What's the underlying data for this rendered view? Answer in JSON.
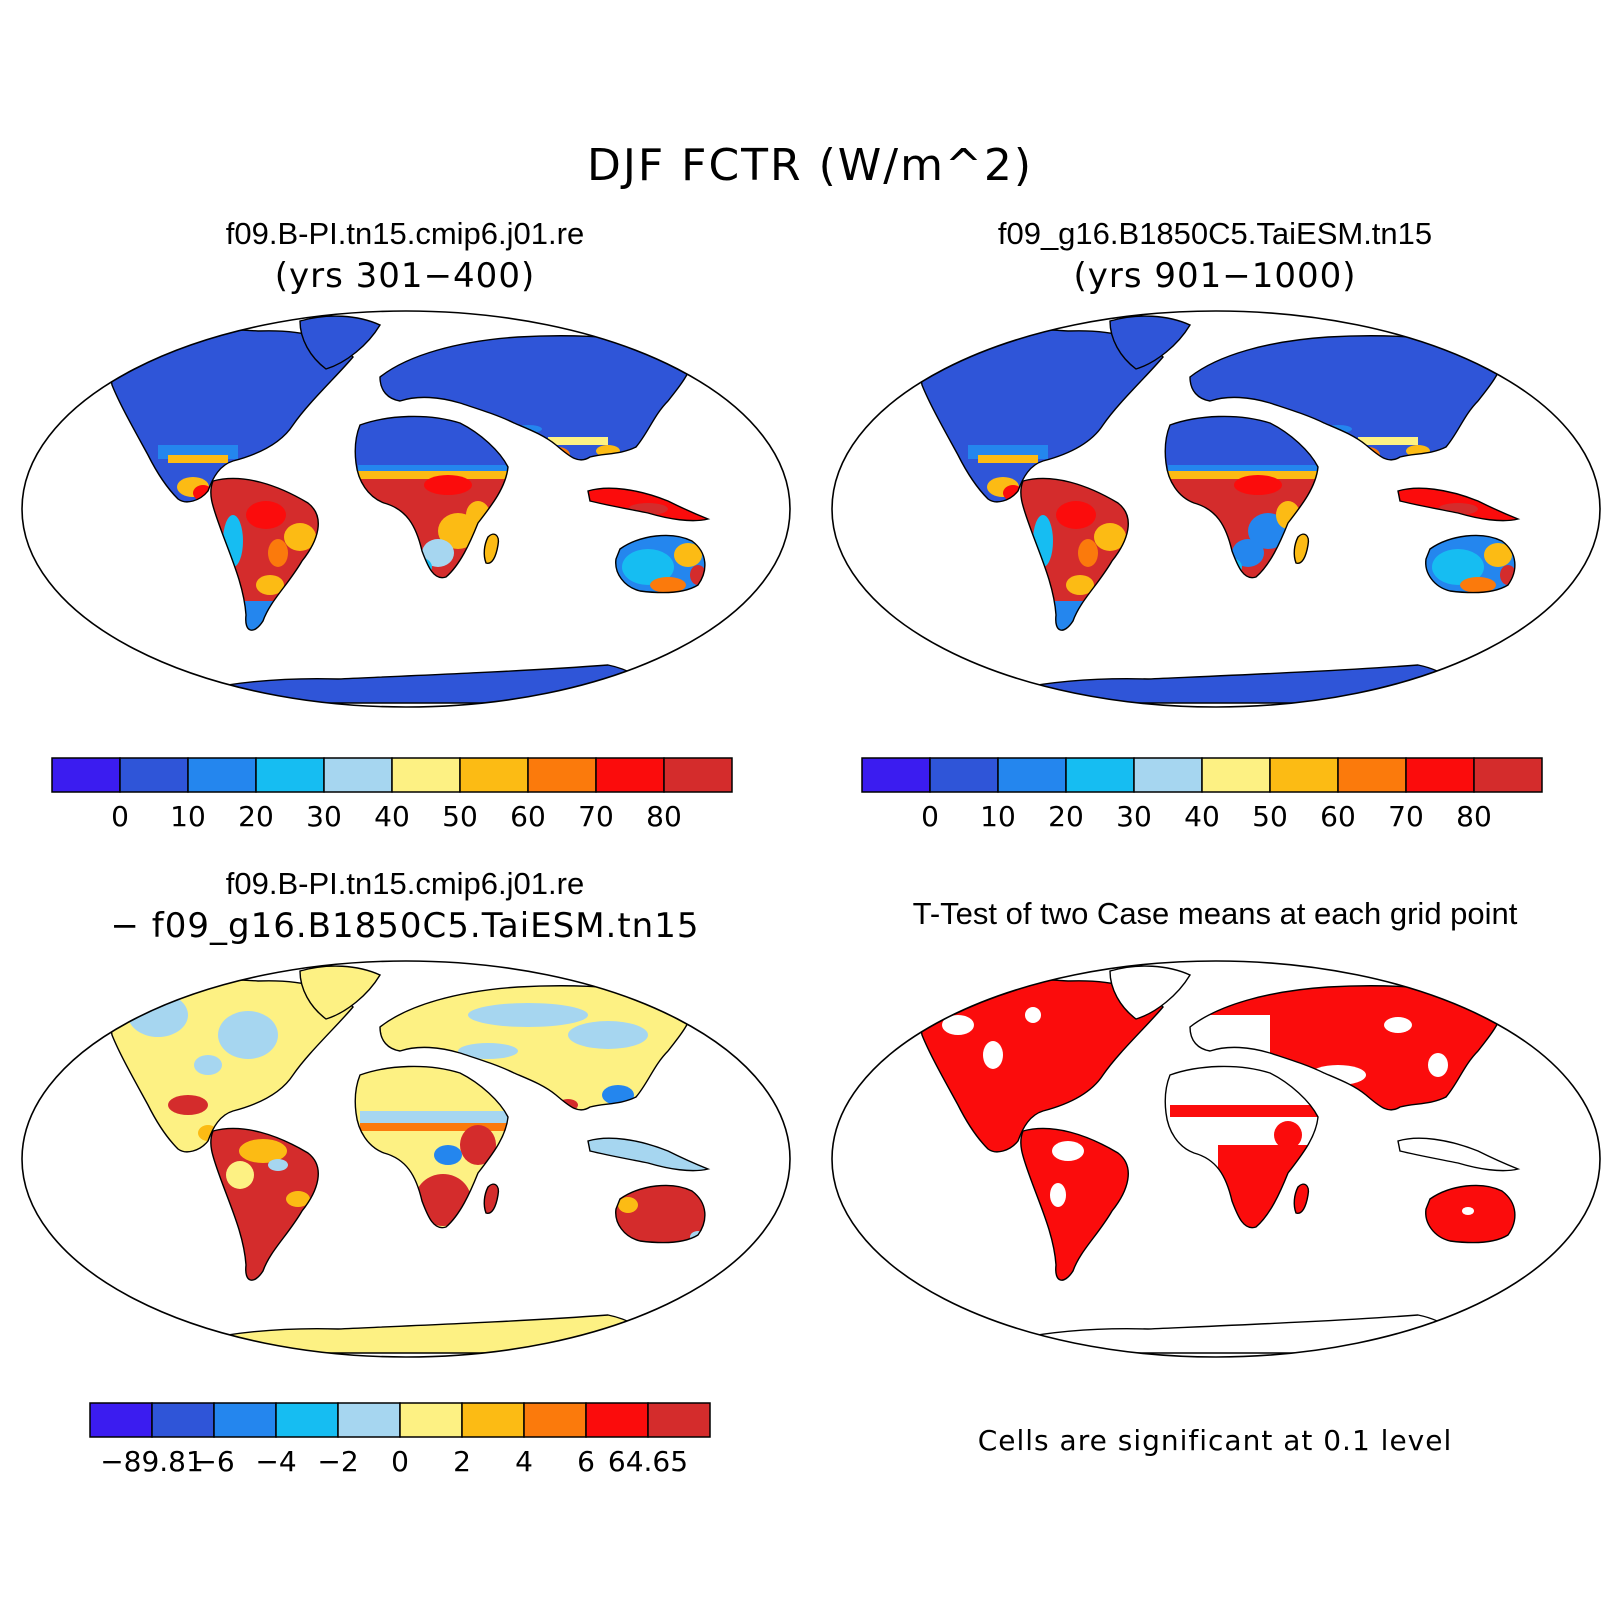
{
  "title": "DJF FCTR (W/m^2)",
  "panels": [
    {
      "title": "f09.B-PI.tn15.cmip6.j01.re",
      "subtitle": "(yrs 301−400)"
    },
    {
      "title": "f09_g16.B1850C5.TaiESM.tn15",
      "subtitle": "(yrs 901−1000)"
    },
    {
      "title": "f09.B-PI.tn15.cmip6.j01.re",
      "subtitle": "− f09_g16.B1850C5.TaiESM.tn15"
    },
    {
      "title": "T-Test of two Case means at each grid point",
      "subtitle": ""
    }
  ],
  "note": "Cells are significant at 0.1 level",
  "colorbars": {
    "absolute": {
      "labels": [
        "0",
        "10",
        "20",
        "30",
        "40",
        "50",
        "60",
        "70",
        "80"
      ],
      "colors": [
        "#3b1cf0",
        "#2f55d8",
        "#2486ee",
        "#16bdf2",
        "#a6d6f0",
        "#fdf183",
        "#fcbb14",
        "#fb7a0c",
        "#fb0c0c",
        "#d42c2c"
      ]
    },
    "difference": {
      "labels": [
        "−89.81",
        "−6",
        "−4",
        "−2",
        "0",
        "2",
        "4",
        "6",
        "64.65"
      ],
      "colors": [
        "#3b1cf0",
        "#2f55d8",
        "#2486ee",
        "#16bdf2",
        "#a6d6f0",
        "#fdf183",
        "#fcbb14",
        "#fb7a0c",
        "#fb0c0c",
        "#d42c2c"
      ]
    }
  }
}
